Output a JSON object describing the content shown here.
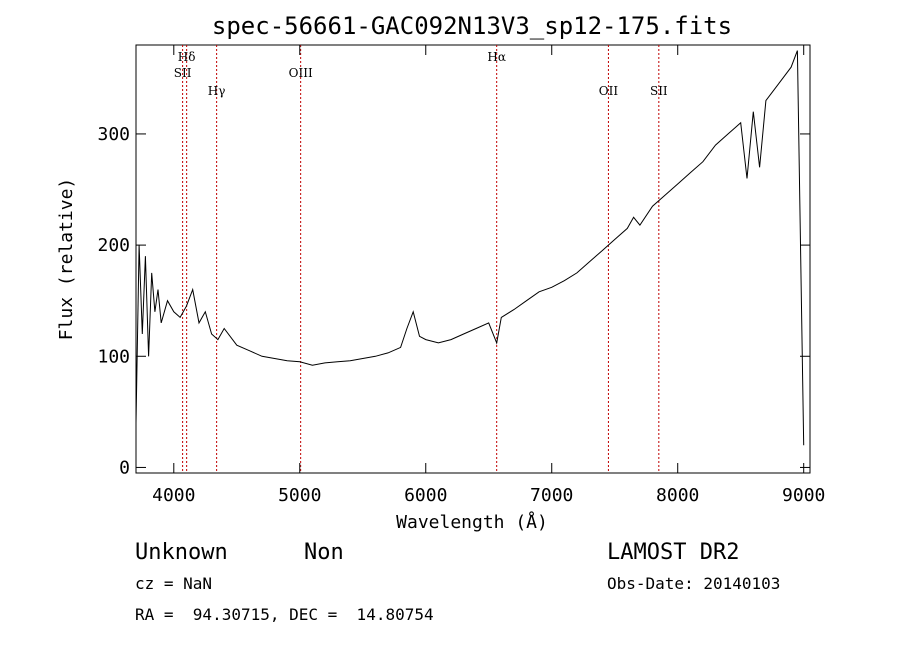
{
  "chart_data": {
    "type": "line",
    "title": "spec-56661-GAC092N13V3_sp12-175.fits",
    "xlabel": "Wavelength (Å)",
    "ylabel": "Flux (relative)",
    "xlim": [
      3700,
      9050
    ],
    "ylim": [
      -5,
      380
    ],
    "xticks": [
      4000,
      5000,
      6000,
      7000,
      8000,
      9000
    ],
    "yticks": [
      0,
      100,
      200,
      300
    ],
    "grid": false,
    "line_color": "#000000",
    "marker_color": "#c00000",
    "series": [
      {
        "x": [
          3700,
          3725,
          3750,
          3775,
          3800,
          3825,
          3850,
          3875,
          3900,
          3950,
          4000,
          4050,
          4100,
          4150,
          4200,
          4250,
          4300,
          4350,
          4400,
          4500,
          4600,
          4700,
          4800,
          4900,
          5000,
          5100,
          5200,
          5300,
          5400,
          5500,
          5600,
          5700,
          5800,
          5850,
          5900,
          5950,
          6000,
          6100,
          6200,
          6300,
          6400,
          6500,
          6563,
          6600,
          6700,
          6800,
          6900,
          7000,
          7100,
          7200,
          7300,
          7400,
          7500,
          7600,
          7650,
          7700,
          7800,
          7900,
          8000,
          8100,
          8200,
          8300,
          8400,
          8500,
          8550,
          8600,
          8650,
          8700,
          8800,
          8900,
          8950,
          9000
        ],
        "y": [
          40,
          200,
          120,
          190,
          100,
          175,
          140,
          160,
          130,
          150,
          140,
          135,
          145,
          160,
          130,
          140,
          120,
          115,
          125,
          110,
          105,
          100,
          98,
          96,
          95,
          92,
          94,
          95,
          96,
          98,
          100,
          103,
          108,
          125,
          140,
          118,
          115,
          112,
          115,
          120,
          125,
          130,
          112,
          135,
          142,
          150,
          158,
          162,
          168,
          175,
          185,
          195,
          205,
          215,
          225,
          218,
          235,
          245,
          255,
          265,
          275,
          290,
          300,
          310,
          260,
          320,
          270,
          330,
          345,
          360,
          375,
          20
        ]
      }
    ],
    "lines": [
      {
        "label": "Hδ",
        "x": 4102,
        "row": 1
      },
      {
        "label": "SII",
        "x": 4070,
        "row": 2
      },
      {
        "label": "Hγ",
        "x": 4340,
        "row": 3
      },
      {
        "label": "OIII",
        "x": 5007,
        "row": 2
      },
      {
        "label": "Hα",
        "x": 6563,
        "row": 1
      },
      {
        "label": "OII",
        "x": 7450,
        "row": 3
      },
      {
        "label": "SII",
        "x": 7850,
        "row": 3
      }
    ]
  },
  "info": {
    "class_name": "Unknown",
    "subclass": "Non",
    "survey": "LAMOST DR2",
    "cz": "cz = NaN",
    "obs_date": "Obs-Date: 20140103",
    "radec": "RA =  94.30715, DEC =  14.80754"
  }
}
